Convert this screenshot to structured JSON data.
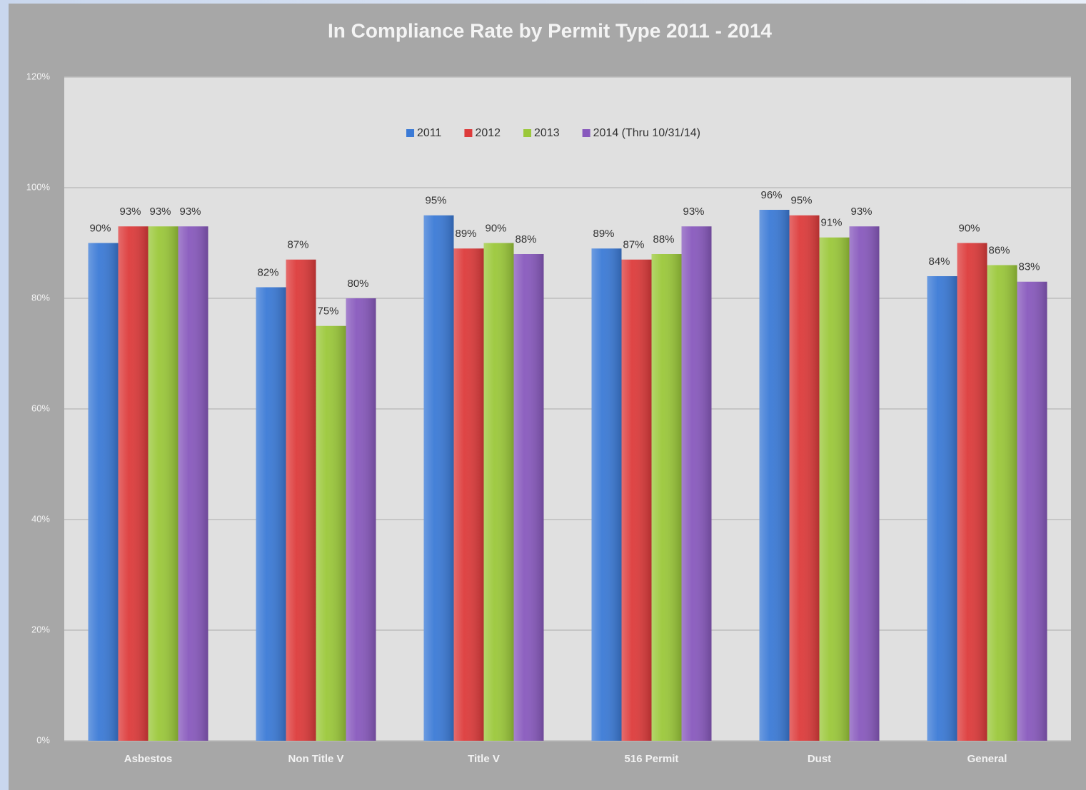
{
  "chart_data": {
    "type": "bar",
    "title": "In Compliance Rate by Permit Type 2011 - 2014",
    "categories": [
      "Asbestos",
      "Non Title V",
      "Title V",
      "516 Permit",
      "Dust",
      "General"
    ],
    "series": [
      {
        "name": "2011",
        "color": "#3b7ad6",
        "values": [
          90,
          82,
          95,
          89,
          96,
          84
        ],
        "value_labels": [
          "90%",
          "82%",
          "95%",
          "89%",
          "96%",
          "84%"
        ]
      },
      {
        "name": "2012",
        "color": "#dd3b3b",
        "values": [
          93,
          87,
          89,
          87,
          95,
          90
        ],
        "value_labels": [
          "93%",
          "87%",
          "89%",
          "87%",
          "95%",
          "90%"
        ]
      },
      {
        "name": "2013",
        "color": "#9bc83a",
        "values": [
          93,
          75,
          90,
          88,
          91,
          86
        ],
        "value_labels": [
          "93%",
          "75%",
          "90%",
          "88%",
          "91%",
          "86%"
        ]
      },
      {
        "name": "2014 (Thru 10/31/14)",
        "color": "#8859bd",
        "values": [
          93,
          80,
          88,
          93,
          93,
          83
        ],
        "value_labels": [
          "93%",
          "80%",
          "88%",
          "93%",
          "93%",
          "83%"
        ]
      }
    ],
    "ylim": [
      0,
      120
    ],
    "yticks": [
      {
        "value": 0,
        "label": "0%"
      },
      {
        "value": 20,
        "label": "20%"
      },
      {
        "value": 40,
        "label": "40%"
      },
      {
        "value": 60,
        "label": "60%"
      },
      {
        "value": 80,
        "label": "80%"
      },
      {
        "value": 100,
        "label": "100%"
      },
      {
        "value": 120,
        "label": "120%"
      }
    ],
    "grid": true
  }
}
